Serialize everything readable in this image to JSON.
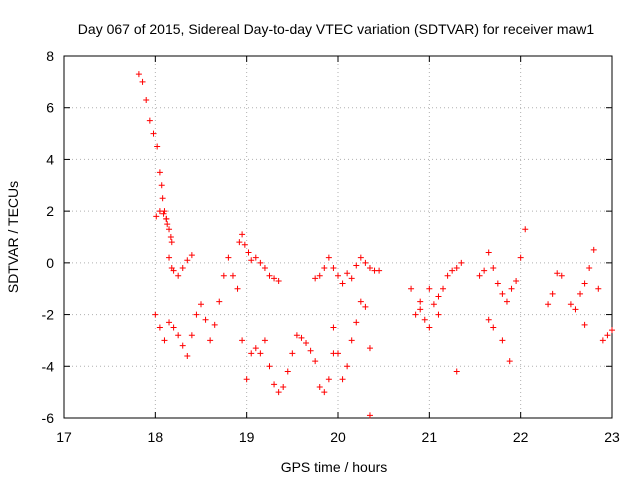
{
  "chart_data": {
    "type": "scatter",
    "title": "Day 067 of 2015, Sidereal Day-to-day VTEC variation (SDTVAR) for receiver maw1",
    "xlabel": "GPS time / hours",
    "ylabel": "SDTVAR / TECUs",
    "xlim": [
      17,
      23
    ],
    "ylim": [
      -6,
      8
    ],
    "xticks": [
      "17",
      "18",
      "19",
      "20",
      "21",
      "22",
      "23"
    ],
    "yticks": [
      "8",
      "6",
      "4",
      "2",
      "0",
      "-2",
      "-4",
      "-6"
    ],
    "grid": true,
    "marker": "+",
    "color": "#ff0000",
    "series": [
      {
        "name": "SDTVAR",
        "x": [
          17.82,
          17.86,
          17.9,
          17.94,
          17.98,
          18.02,
          18.05,
          18.07,
          18.08,
          18.1,
          18.12,
          18.13,
          18.15,
          18.17,
          18.18,
          18.01,
          18.05,
          18.09,
          18.12,
          18.15,
          18.18,
          18.2,
          18.25,
          18.3,
          18.35,
          18.4,
          18.0,
          18.05,
          18.1,
          18.15,
          18.2,
          18.25,
          18.3,
          18.35,
          18.4,
          18.45,
          18.5,
          18.55,
          18.6,
          18.65,
          18.7,
          18.75,
          18.8,
          18.85,
          18.9,
          18.92,
          18.95,
          18.98,
          19.02,
          19.05,
          19.1,
          19.15,
          19.2,
          19.25,
          19.3,
          19.35,
          18.95,
          19.0,
          19.05,
          19.1,
          19.15,
          19.2,
          19.25,
          19.3,
          19.35,
          19.4,
          19.45,
          19.5,
          19.55,
          19.6,
          19.65,
          19.7,
          19.75,
          19.8,
          19.85,
          19.9,
          19.95,
          19.75,
          19.8,
          19.85,
          19.9,
          19.95,
          20.0,
          20.05,
          20.1,
          20.15,
          20.2,
          20.25,
          20.3,
          20.35,
          20.4,
          20.45,
          19.95,
          20.0,
          20.05,
          20.1,
          20.15,
          20.2,
          20.25,
          20.3,
          20.35,
          20.35,
          20.8,
          20.85,
          20.9,
          20.95,
          21.0,
          21.05,
          21.1,
          21.15,
          21.2,
          21.25,
          21.3,
          21.35,
          20.9,
          21.0,
          21.1,
          21.3,
          21.55,
          21.6,
          21.65,
          21.7,
          21.75,
          21.8,
          21.85,
          21.9,
          21.95,
          22.0,
          22.05,
          21.65,
          21.7,
          21.8,
          21.88,
          22.3,
          22.35,
          22.4,
          22.45,
          22.55,
          22.6,
          22.65,
          22.7,
          22.75,
          22.8,
          22.85,
          22.9,
          22.95,
          23.0,
          22.7
        ],
        "y": [
          7.3,
          7.0,
          6.3,
          5.5,
          5.0,
          4.5,
          3.5,
          3.0,
          2.5,
          2.0,
          1.7,
          1.5,
          1.3,
          1.0,
          0.8,
          1.8,
          2.0,
          1.9,
          1.7,
          0.2,
          -0.2,
          -0.3,
          -0.5,
          -0.2,
          0.1,
          0.3,
          -2.0,
          -2.5,
          -3.0,
          -2.3,
          -2.5,
          -2.8,
          -3.2,
          -3.6,
          -2.8,
          -2.0,
          -1.6,
          -2.2,
          -3.0,
          -2.4,
          -1.5,
          -0.5,
          0.2,
          -0.5,
          -1.0,
          0.8,
          1.1,
          0.7,
          0.4,
          0.1,
          0.2,
          0.0,
          -0.2,
          -0.5,
          -0.6,
          -0.7,
          -3.0,
          -4.5,
          -3.5,
          -3.3,
          -3.5,
          -3.0,
          -4.0,
          -4.7,
          -5.0,
          -4.8,
          -4.2,
          -3.5,
          -2.8,
          -2.9,
          -3.1,
          -3.4,
          -3.8,
          -4.8,
          -5.0,
          -4.5,
          -3.5,
          -0.6,
          -0.5,
          -0.2,
          0.2,
          -0.2,
          -0.5,
          -0.8,
          -0.4,
          -0.6,
          -0.1,
          0.2,
          0.0,
          -0.2,
          -0.3,
          -0.3,
          -2.5,
          -3.5,
          -4.5,
          -4.0,
          -3.0,
          -2.3,
          -1.5,
          -1.7,
          -3.3,
          -5.9,
          -1.0,
          -2.0,
          -1.5,
          -2.2,
          -1.0,
          -1.6,
          -1.3,
          -1.0,
          -0.5,
          -0.3,
          -0.2,
          0.0,
          -1.8,
          -2.5,
          -2.0,
          -4.2,
          -0.5,
          -0.3,
          0.4,
          -0.2,
          -0.8,
          -1.2,
          -1.5,
          -1.0,
          -0.7,
          0.2,
          1.3,
          -2.2,
          -2.5,
          -3.0,
          -3.8,
          -1.6,
          -1.2,
          -0.4,
          -0.5,
          -1.6,
          -1.8,
          -1.2,
          -0.8,
          -0.2,
          0.5,
          -1.0,
          -3.0,
          -2.8,
          -2.6,
          -2.4
        ]
      }
    ]
  }
}
